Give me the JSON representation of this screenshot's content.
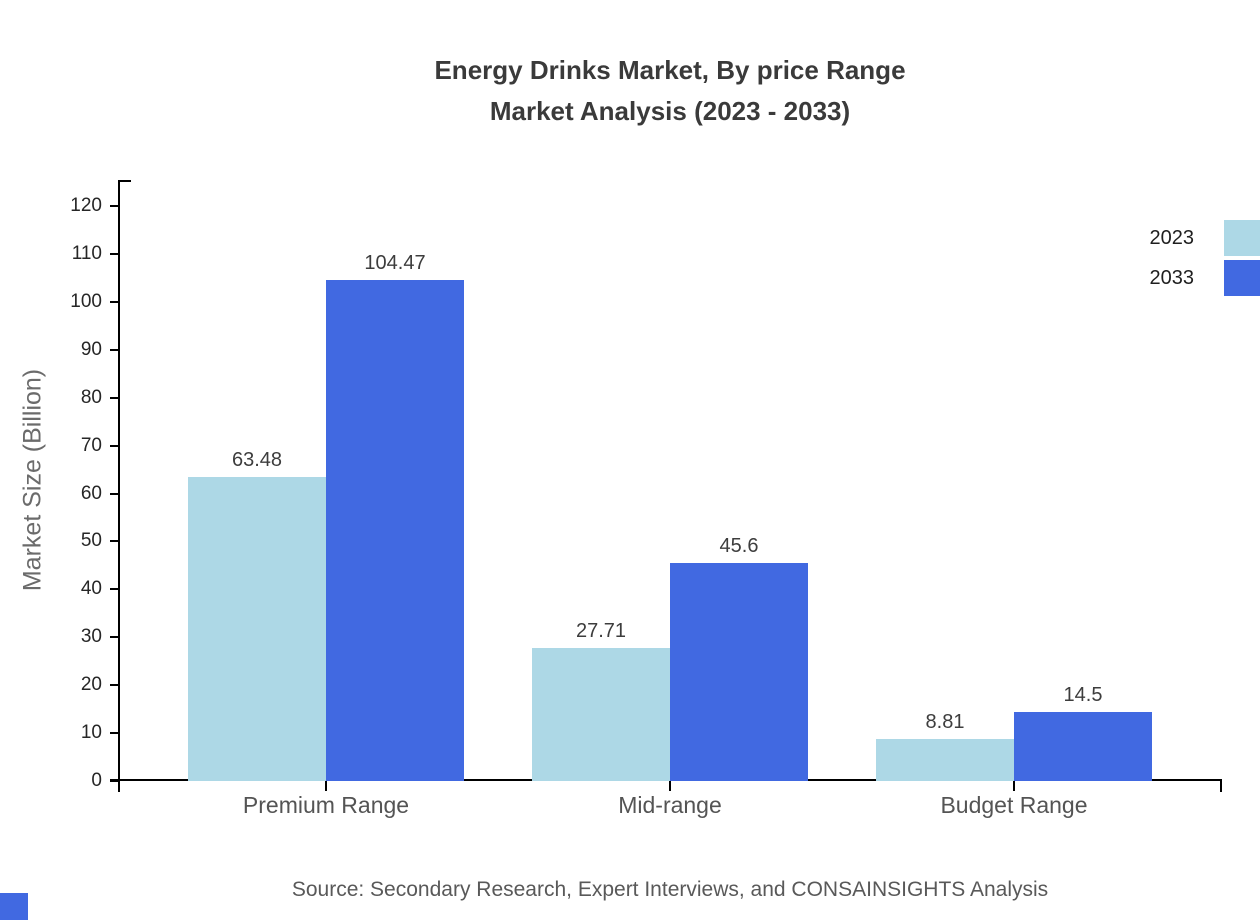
{
  "chart_data": {
    "type": "bar",
    "title": "Energy Drinks Market, By price Range",
    "subtitle": "Market Analysis (2023 - 2033)",
    "categories": [
      "Premium Range",
      "Mid-range",
      "Budget Range"
    ],
    "series": [
      {
        "name": "2023",
        "color": "#ADD8E6",
        "values": [
          63.48,
          27.71,
          8.81
        ],
        "labels": [
          "63.48",
          "27.71",
          "8.81"
        ]
      },
      {
        "name": "2033",
        "color": "#4169E1",
        "values": [
          104.47,
          45.6,
          14.5
        ],
        "labels": [
          "104.47",
          "45.6",
          "14.5"
        ]
      }
    ],
    "xlabel": "",
    "ylabel": "Market Size (Billion)",
    "ylim": [
      0,
      120
    ],
    "ytick_step": 10,
    "ytick_labels": [
      "0",
      "10",
      "20",
      "30",
      "40",
      "50",
      "60",
      "70",
      "80",
      "90",
      "100",
      "110",
      "120"
    ],
    "grid": false,
    "legend_position": "top-right",
    "source": "Source: Secondary Research, Expert Interviews, and CONSAINSIGHTS Analysis",
    "accent_color": "#4169E1"
  }
}
